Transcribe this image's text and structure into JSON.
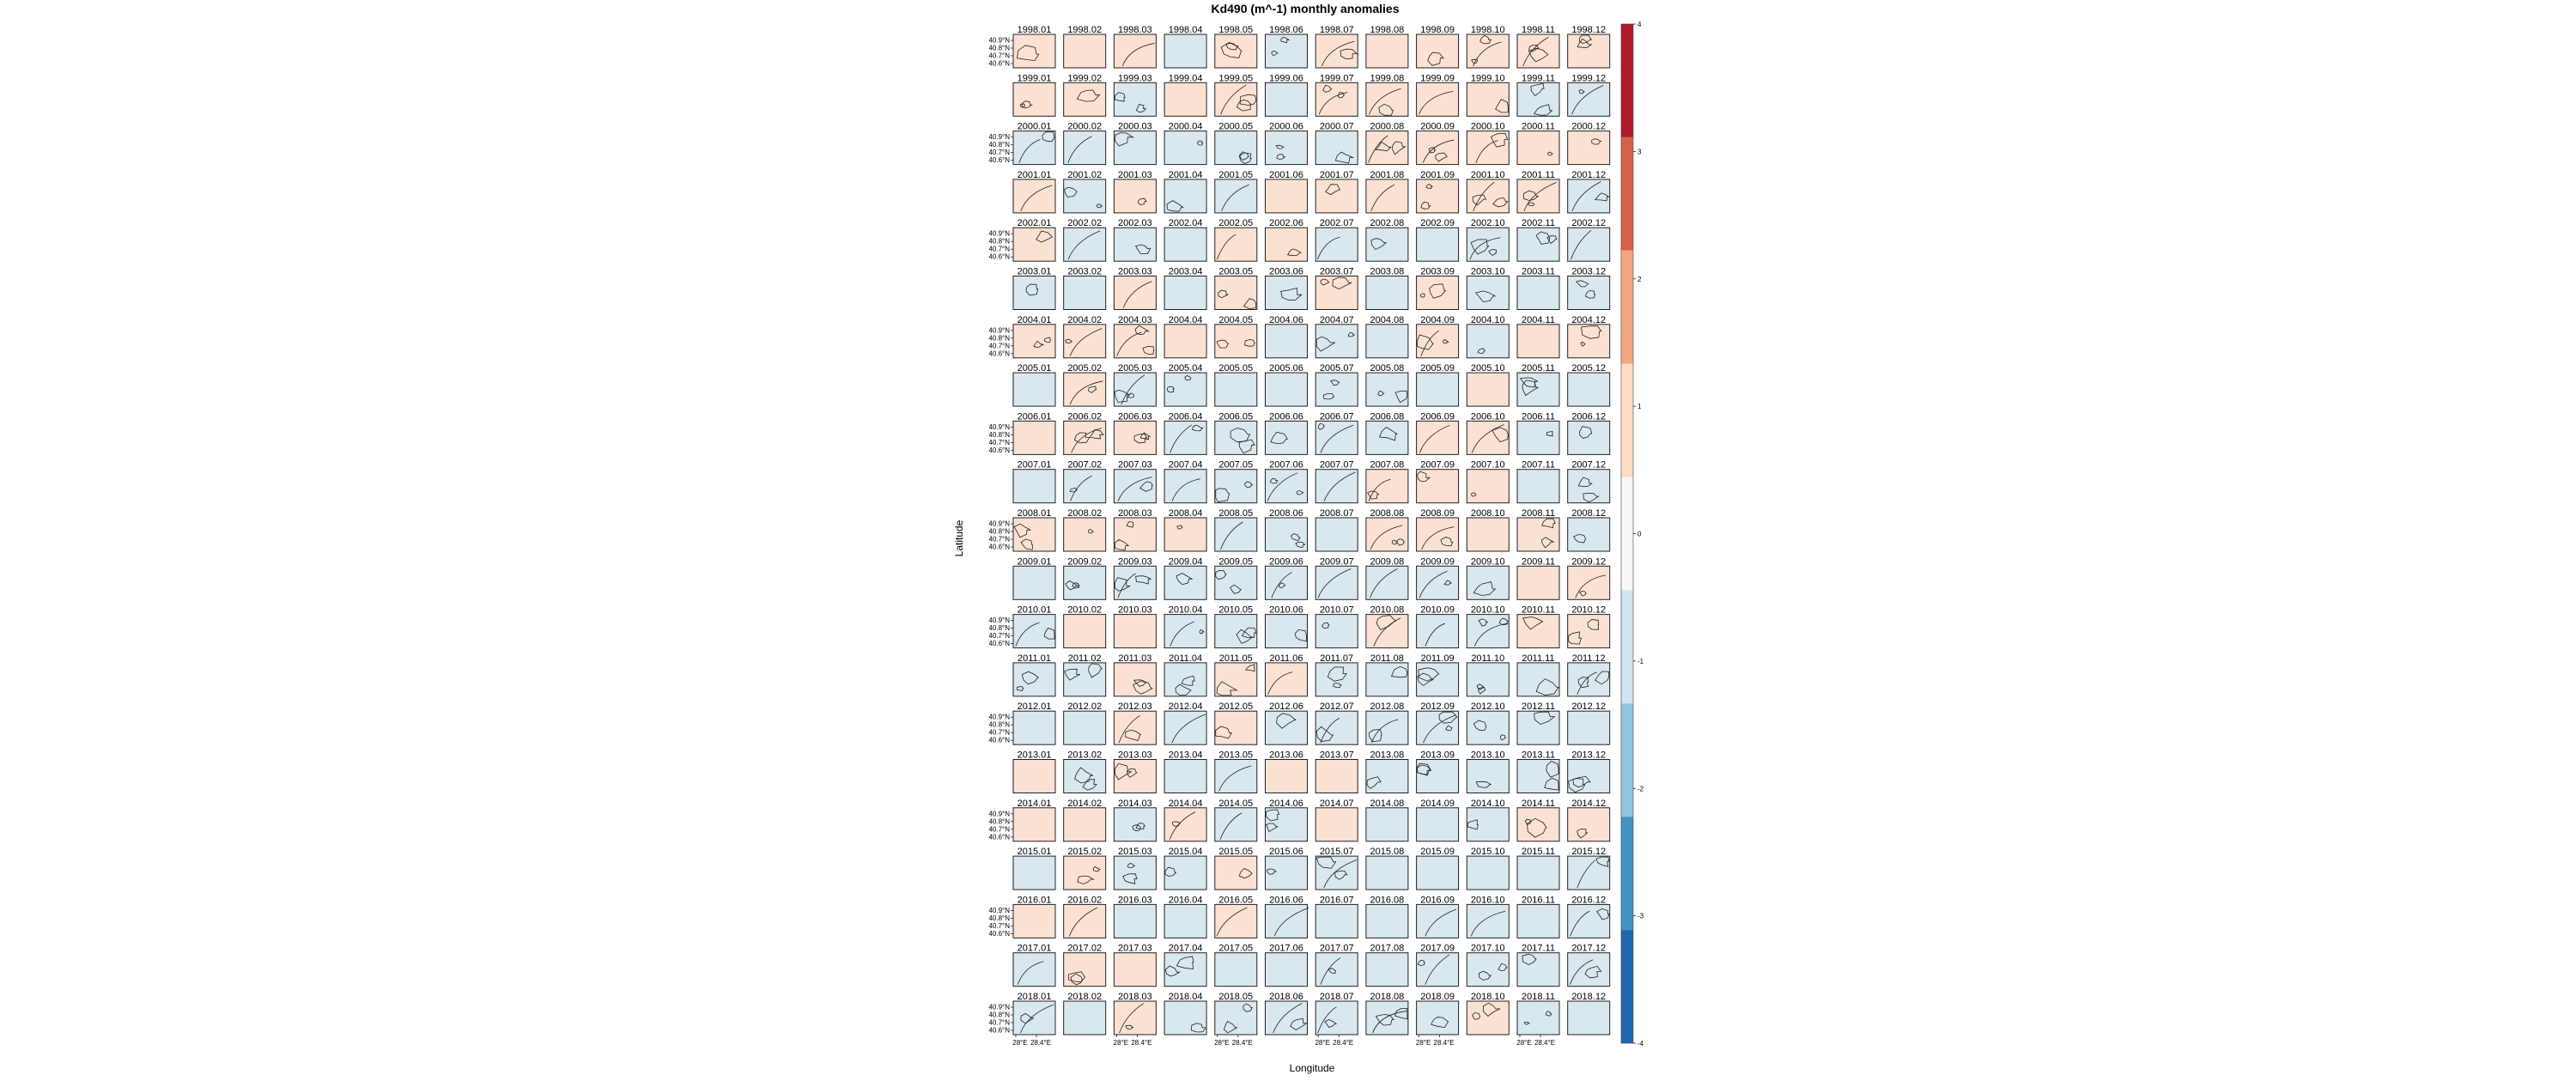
{
  "chart_data": {
    "type": "heatmap",
    "title": "Kd490 (m^-1) monthly anomalies",
    "xlabel": "Longitude",
    "ylabel": "Latitude",
    "x_tick_labels": [
      "28°E",
      "28.4°E"
    ],
    "y_tick_labels": [
      "40.9°N",
      "40.8°N",
      "40.7°N",
      "40.6°N"
    ],
    "colorbar": {
      "ticks": [
        4,
        3,
        2,
        1,
        0,
        -1,
        -2,
        -3,
        -4
      ],
      "range": [
        -4,
        4
      ],
      "class_colors": [
        "#b2182b",
        "#d6604d",
        "#f4a582",
        "#fddbc7",
        "#f7f7f7",
        "#d1e5f0",
        "#92c5de",
        "#4393c3",
        "#2166ac"
      ]
    },
    "fill_colors": {
      "positive": "#fae1d2",
      "negative": "#d9e7ef"
    },
    "years": [
      1998,
      1999,
      2000,
      2001,
      2002,
      2003,
      2004,
      2005,
      2006,
      2007,
      2008,
      2009,
      2010,
      2011,
      2012,
      2013,
      2014,
      2015,
      2016,
      2017,
      2018
    ],
    "months": [
      "01",
      "02",
      "03",
      "04",
      "05",
      "06",
      "07",
      "08",
      "09",
      "10",
      "11",
      "12"
    ],
    "anomaly_sign": [
      "PPPNPNPPPPPP",
      "PPNPPNPPPPNN",
      "NNNNNNNPPPPP",
      "PNPNNPPPPPPN",
      "PNNNPPNNNNNN",
      "NNPNPNPNPNNN",
      "PPPPPNNNPNPP",
      "NPNNNNNNNPNN",
      "PPPNNNNNPPNN",
      "NNNNNNNPPPNN",
      "PPPPNNNPPPPN",
      "NNNNNNNNNNPP",
      "NPPNNNNPNNPP",
      "NNPNPPNNNNNN",
      "NNPNPNNNNNNN",
      "PNPNNPPNNNNN",
      "PPNPNNPNNNPP",
      "NPNNPNNNNNNN",
      "PPNNPNNNNNNN",
      "NPPNNNNNNNNN",
      "NNPNNNNNNPNN"
    ]
  }
}
